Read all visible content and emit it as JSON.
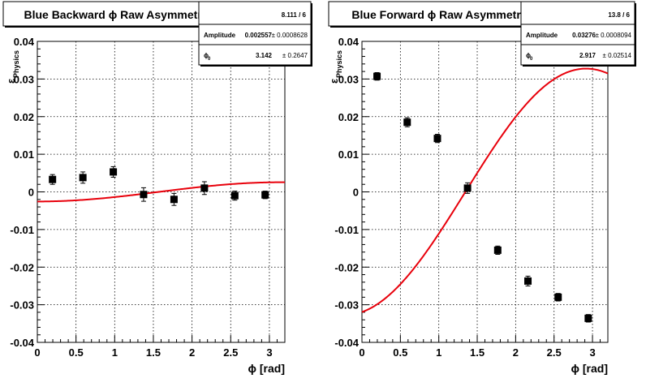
{
  "chart_data": [
    {
      "type": "scatter",
      "title": "Blue Backward ϕ Raw Asymmetry",
      "xlabel": "ϕ [rad]",
      "ylabel": "ε",
      "ylabel_sub": "Physics",
      "xlim": [
        0,
        3.2
      ],
      "ylim": [
        -0.04,
        0.04
      ],
      "xticks": [
        0,
        0.5,
        1,
        1.5,
        2,
        2.5,
        3
      ],
      "xticklabels": [
        "0",
        "0.5",
        "1",
        "1.5",
        "2",
        "2.5",
        "3"
      ],
      "yticks": [
        -0.04,
        -0.03,
        -0.02,
        -0.01,
        0,
        0.01,
        0.02,
        0.03,
        0.04
      ],
      "yticklabels": [
        "-0.04",
        "-0.03",
        "-0.02",
        "-0.01",
        "0",
        "0.01",
        "0.02",
        "0.03",
        "0.04"
      ],
      "grid": true,
      "points": {
        "x": [
          0.196,
          0.589,
          0.982,
          1.374,
          1.767,
          2.16,
          2.553,
          2.945
        ],
        "y": [
          0.0033,
          0.0038,
          0.0053,
          -0.0007,
          -0.002,
          0.001,
          -0.001,
          -0.0008
        ],
        "err": [
          0.0013,
          0.0015,
          0.0014,
          0.0018,
          0.0016,
          0.0017,
          0.0012,
          0.001
        ]
      },
      "fit": {
        "function": "A*cos(x - phi0)",
        "amplitude": 0.002557,
        "phi0": 3.142,
        "color": "#e8000b"
      },
      "stats": {
        "chi2_ndf": "8.111 / 6",
        "amplitude_label": "Amplitude",
        "amplitude_value": "0.002557",
        "amplitude_error": "± 0.0008628",
        "phi_label": "ϕ",
        "phi_sub": "0",
        "phi_value": "3.142",
        "phi_error": "± 0.2647"
      }
    },
    {
      "type": "scatter",
      "title": "Blue Forward ϕ Raw Asymmetry",
      "xlabel": "ϕ [rad]",
      "ylabel": "ε",
      "ylabel_sub": "Physics",
      "xlim": [
        0,
        3.2
      ],
      "ylim": [
        -0.04,
        0.04
      ],
      "xticks": [
        0,
        0.5,
        1,
        1.5,
        2,
        2.5,
        3
      ],
      "xticklabels": [
        "0",
        "0.5",
        "1",
        "1.5",
        "2",
        "2.5",
        "3"
      ],
      "yticks": [
        -0.04,
        -0.03,
        -0.02,
        -0.01,
        0,
        0.01,
        0.02,
        0.03,
        0.04
      ],
      "yticklabels": [
        "-0.04",
        "-0.03",
        "-0.02",
        "-0.01",
        "0",
        "0.01",
        "0.02",
        "0.03",
        "0.04"
      ],
      "grid": true,
      "points": {
        "x": [
          0.196,
          0.589,
          0.982,
          1.374,
          1.767,
          2.16,
          2.553,
          2.945
        ],
        "y": [
          0.0307,
          0.0185,
          0.0142,
          0.001,
          -0.0155,
          -0.0237,
          -0.028,
          -0.0336
        ],
        "err": [
          0.001,
          0.0012,
          0.0011,
          0.0014,
          0.0011,
          0.0013,
          0.001,
          0.001
        ]
      },
      "fit": {
        "function": "A*cos(x - phi0)",
        "amplitude": 0.03276,
        "phi0": 2.917,
        "color": "#e8000b"
      },
      "stats": {
        "chi2_ndf": "13.8 / 6",
        "amplitude_label": "Amplitude",
        "amplitude_value": "0.03276",
        "amplitude_error": "± 0.0008094",
        "phi_label": "ϕ",
        "phi_sub": "0",
        "phi_value": "2.917",
        "phi_error": "± 0.02514"
      }
    }
  ]
}
